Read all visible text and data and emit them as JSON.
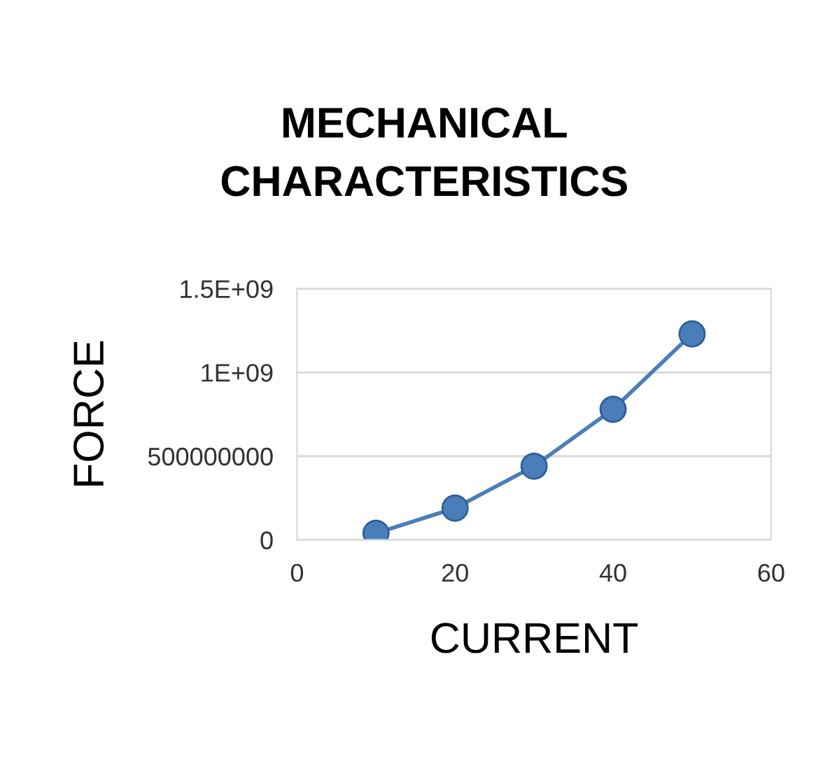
{
  "chart_data": {
    "type": "line",
    "title": "MECHANICAL\nCHARACTERISTICS",
    "xlabel": "CURRENT",
    "ylabel": "FORCE",
    "x": [
      10,
      20,
      30,
      40,
      50
    ],
    "series": [
      {
        "color": "#4a7ebb",
        "values": [
          40000000,
          190000000,
          440000000,
          780000000,
          1230000000
        ]
      }
    ],
    "xlim": [
      0,
      60
    ],
    "xticks": [
      0,
      20,
      40,
      60
    ],
    "ylim": [
      0,
      1500000000
    ],
    "yticks": [
      0,
      {
        "value": 500000000,
        "label": "500000000"
      },
      {
        "value": 1000000000,
        "label": "1E+09"
      },
      {
        "value": 1500000000,
        "label": "1.5E+09"
      }
    ],
    "grid": "y",
    "marker": "circle",
    "line_style": "solid",
    "legend": false
  }
}
